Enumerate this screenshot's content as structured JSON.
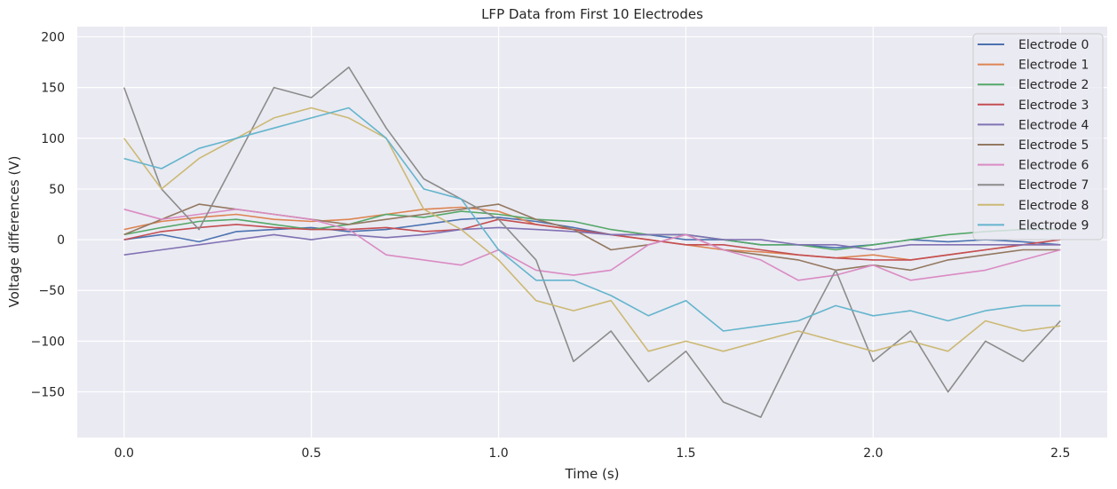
{
  "chart_data": {
    "type": "line",
    "title": "LFP Data from First 10 Electrodes",
    "xlabel": "Time (s)",
    "ylabel": "Voltage differences (V)",
    "xlim": [
      -0.125,
      2.625
    ],
    "ylim": [
      -195,
      210
    ],
    "xticks": [
      0.0,
      0.5,
      1.0,
      1.5,
      2.0,
      2.5
    ],
    "xtick_labels": [
      "0.0",
      "0.5",
      "1.0",
      "1.5",
      "2.0",
      "2.5"
    ],
    "yticks": [
      -150,
      -100,
      -50,
      0,
      50,
      100,
      150,
      200
    ],
    "ytick_labels": [
      "−150",
      "−100",
      "−50",
      "0",
      "50",
      "100",
      "150",
      "200"
    ],
    "grid": true,
    "legend_position": "top-right",
    "x": [
      0.0,
      0.1,
      0.2,
      0.3,
      0.4,
      0.5,
      0.6,
      0.7,
      0.8,
      0.9,
      1.0,
      1.1,
      1.2,
      1.3,
      1.4,
      1.5,
      1.6,
      1.7,
      1.8,
      1.9,
      2.0,
      2.1,
      2.2,
      2.3,
      2.4,
      2.5
    ],
    "series": [
      {
        "name": "Electrode 0",
        "color": "#4c72b0",
        "values": [
          0,
          5,
          -2,
          8,
          10,
          12,
          8,
          10,
          15,
          20,
          22,
          18,
          12,
          5,
          5,
          0,
          0,
          -5,
          -5,
          -8,
          -5,
          0,
          -2,
          0,
          -2,
          -5
        ]
      },
      {
        "name": "Electrode 1",
        "color": "#dd8452",
        "values": [
          10,
          18,
          22,
          25,
          20,
          18,
          20,
          25,
          30,
          32,
          28,
          15,
          10,
          5,
          0,
          -5,
          -10,
          -12,
          -15,
          -18,
          -15,
          -20,
          -15,
          -10,
          -5,
          -5
        ]
      },
      {
        "name": "Electrode 2",
        "color": "#55a868",
        "values": [
          5,
          12,
          18,
          20,
          15,
          10,
          15,
          25,
          22,
          28,
          25,
          20,
          18,
          10,
          5,
          5,
          0,
          -5,
          -5,
          -10,
          -5,
          0,
          5,
          8,
          10,
          10
        ]
      },
      {
        "name": "Electrode 3",
        "color": "#c44e52",
        "values": [
          0,
          8,
          12,
          15,
          12,
          10,
          10,
          12,
          8,
          10,
          20,
          15,
          10,
          5,
          0,
          -5,
          -5,
          -10,
          -15,
          -18,
          -20,
          -20,
          -15,
          -10,
          -5,
          0
        ]
      },
      {
        "name": "Electrode 4",
        "color": "#8172b3",
        "values": [
          -15,
          -10,
          -5,
          0,
          5,
          0,
          5,
          2,
          5,
          10,
          12,
          10,
          8,
          5,
          5,
          5,
          0,
          0,
          -5,
          -5,
          -10,
          -5,
          -5,
          -5,
          -5,
          -5
        ]
      },
      {
        "name": "Electrode 5",
        "color": "#937860",
        "values": [
          5,
          20,
          35,
          30,
          25,
          20,
          15,
          20,
          25,
          30,
          35,
          20,
          10,
          -10,
          -5,
          5,
          -10,
          -15,
          -20,
          -30,
          -25,
          -30,
          -20,
          -15,
          -10,
          -10
        ]
      },
      {
        "name": "Electrode 6",
        "color": "#da8bc3",
        "values": [
          30,
          20,
          25,
          30,
          25,
          20,
          10,
          -15,
          -20,
          -25,
          -10,
          -30,
          -35,
          -30,
          -5,
          5,
          -10,
          -20,
          -40,
          -35,
          -25,
          -40,
          -35,
          -30,
          -20,
          -10
        ]
      },
      {
        "name": "Electrode 7",
        "color": "#8c8c8c",
        "values": [
          150,
          50,
          10,
          80,
          150,
          140,
          170,
          110,
          60,
          40,
          20,
          -20,
          -120,
          -90,
          -140,
          -110,
          -160,
          -175,
          -100,
          -30,
          -120,
          -90,
          -150,
          -100,
          -120,
          -80
        ]
      },
      {
        "name": "Electrode 8",
        "color": "#ccb974",
        "values": [
          100,
          50,
          80,
          100,
          120,
          130,
          120,
          100,
          30,
          10,
          -20,
          -60,
          -70,
          -60,
          -110,
          -100,
          -110,
          -100,
          -90,
          -100,
          -110,
          -100,
          -110,
          -80,
          -90,
          -85
        ]
      },
      {
        "name": "Electrode 9",
        "color": "#64b5cd",
        "values": [
          80,
          70,
          90,
          100,
          110,
          120,
          130,
          100,
          50,
          40,
          -10,
          -40,
          -40,
          -55,
          -75,
          -60,
          -90,
          -85,
          -80,
          -65,
          -75,
          -70,
          -80,
          -70,
          -65,
          -65
        ]
      }
    ]
  }
}
